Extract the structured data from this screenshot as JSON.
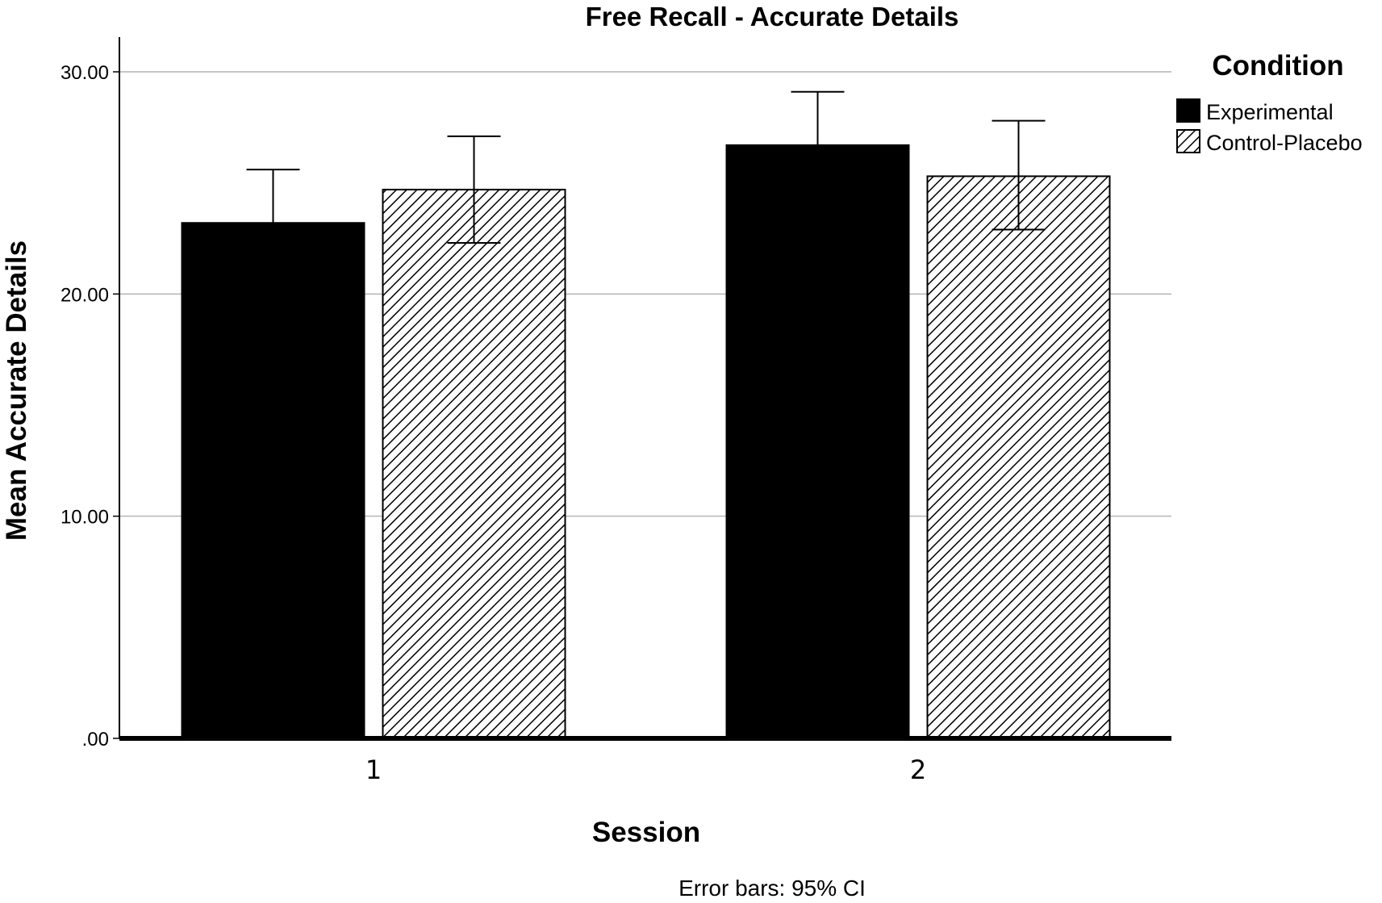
{
  "chart_data": {
    "type": "bar",
    "title": "Free Recall - Accurate Details",
    "xlabel": "Session",
    "ylabel": "Mean Accurate Details",
    "categories": [
      "1",
      "2"
    ],
    "ylim": [
      0,
      30.5
    ],
    "yticks": [
      {
        "value": 0,
        "label": ".00"
      },
      {
        "value": 10,
        "label": "10.00"
      },
      {
        "value": 20,
        "label": "20.00"
      },
      {
        "value": 30,
        "label": "30.00"
      }
    ],
    "grid": true,
    "legend": {
      "title": "Condition",
      "position": "right"
    },
    "series": [
      {
        "name": "Experimental",
        "fill": "solid",
        "values": [
          23.2,
          26.7
        ],
        "ci_low": [
          20.8,
          24.2
        ],
        "ci_high": [
          25.6,
          29.1
        ]
      },
      {
        "name": "Control-Placebo",
        "fill": "hatched",
        "values": [
          24.7,
          25.3
        ],
        "ci_low": [
          22.3,
          22.9
        ],
        "ci_high": [
          27.1,
          27.8
        ]
      }
    ],
    "footnote": "Error bars: 95% CI"
  },
  "colors": {
    "bar_fill": "#000000",
    "hatch_line": "#000000",
    "gridline": "#b4b4b4",
    "axis": "#000000"
  }
}
